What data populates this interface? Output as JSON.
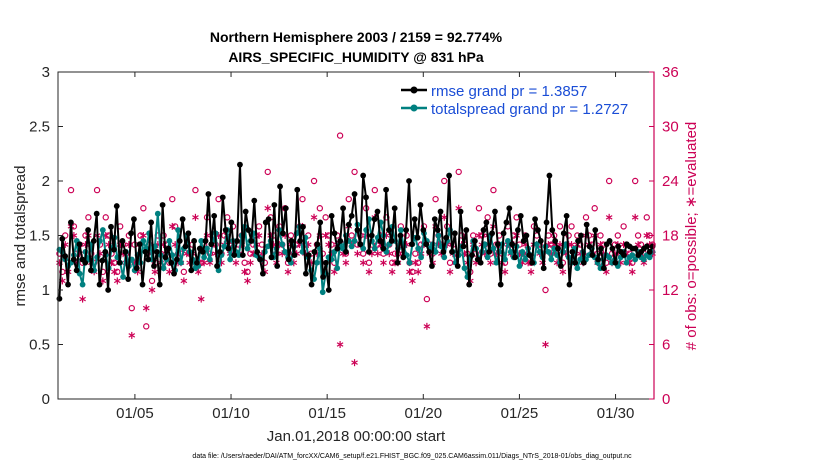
{
  "chart_data": {
    "type": "line",
    "title": "Northern Hemisphere 2003 / 2159 = 92.774%",
    "subtitle": "AIRS_SPECIFIC_HUMIDITY @ 831 hPa",
    "xlabel": "Jan.01,2018 00:00:00 start",
    "ylabel": "rmse and totalspread",
    "y2label": "# of obs: o=possible; ∗=evaluated",
    "footer": "data file: /Users/raeder/DAI/ATM_forcXX/CAM6_setup/f.e21.FHIST_BGC.f09_025.CAM6assim.011/Diags_NTrS_2018-01/obs_diag_output.nc",
    "xlim": [
      1.0,
      32.0
    ],
    "ylim": [
      0,
      3
    ],
    "y2lim": [
      0,
      36
    ],
    "xticks": [
      {
        "label": "01/05",
        "value": 5
      },
      {
        "label": "01/10",
        "value": 10
      },
      {
        "label": "01/15",
        "value": 15
      },
      {
        "label": "01/20",
        "value": 20
      },
      {
        "label": "01/25",
        "value": 25
      },
      {
        "label": "01/30",
        "value": 30
      }
    ],
    "yticks": [
      {
        "label": "0",
        "value": 0
      },
      {
        "label": "0.5",
        "value": 0.5
      },
      {
        "label": "1",
        "value": 1
      },
      {
        "label": "1.5",
        "value": 1.5
      },
      {
        "label": "2",
        "value": 2
      },
      {
        "label": "2.5",
        "value": 2.5
      },
      {
        "label": "3",
        "value": 3
      }
    ],
    "y2ticks": [
      {
        "label": "0",
        "value": 0
      },
      {
        "label": "6",
        "value": 6
      },
      {
        "label": "12",
        "value": 12
      },
      {
        "label": "18",
        "value": 18
      },
      {
        "label": "24",
        "value": 24
      },
      {
        "label": "30",
        "value": 30
      },
      {
        "label": "36",
        "value": 36
      }
    ],
    "legend_position": "top-right",
    "colors": {
      "rmse": "#000000",
      "spread": "#008080",
      "obs": "#cc0055",
      "axis": "#262626"
    },
    "series": [
      {
        "name": "rmse grand pr = 1.3857",
        "key": "rmse",
        "axis": "left",
        "values": [
          0.92,
          1.47,
          1.31,
          1.05,
          1.62,
          1.28,
          1.18,
          1.42,
          1.28,
          1.25,
          1.55,
          1.18,
          1.45,
          1.7,
          1.05,
          1.27,
          1.35,
          1.0,
          1.58,
          1.37,
          1.77,
          1.25,
          1.45,
          1.35,
          1.1,
          1.52,
          1.65,
          1.2,
          1.42,
          1.05,
          1.35,
          1.28,
          1.62,
          1.22,
          1.35,
          1.05,
          1.78,
          1.3,
          1.38,
          1.25,
          1.15,
          1.28,
          1.45,
          1.65,
          1.4,
          1.52,
          1.18,
          1.45,
          1.25,
          1.38,
          1.35,
          1.45,
          1.88,
          1.42,
          1.68,
          1.22,
          1.35,
          1.85,
          1.55,
          1.38,
          1.62,
          1.32,
          1.45,
          2.15,
          1.32,
          1.72,
          1.55,
          1.45,
          1.82,
          1.35,
          1.28,
          1.15,
          1.62,
          1.65,
          1.3,
          1.78,
          1.22,
          1.95,
          1.52,
          1.75,
          1.28,
          1.45,
          1.32,
          1.92,
          1.45,
          1.58,
          1.15,
          1.32,
          1.05,
          1.35,
          1.42,
          1.62,
          1.12,
          1.25,
          1.0,
          1.68,
          1.52,
          1.38,
          1.45,
          1.75,
          1.35,
          1.6,
          1.68,
          1.88,
          1.55,
          1.42,
          2.05,
          1.85,
          1.35,
          1.5,
          1.65,
          1.72,
          1.45,
          1.38,
          1.92,
          1.55,
          1.45,
          1.75,
          1.25,
          1.5,
          1.3,
          1.55,
          2.0,
          1.42,
          1.65,
          1.48,
          1.78,
          1.55,
          1.42,
          1.35,
          1.22,
          1.65,
          1.55,
          1.72,
          1.35,
          1.48,
          2.05,
          1.35,
          1.52,
          1.22,
          1.72,
          1.4,
          1.55,
          1.05,
          1.32,
          1.45,
          1.28,
          1.25,
          1.55,
          1.62,
          1.35,
          1.52,
          1.72,
          1.42,
          1.05,
          1.52,
          1.62,
          1.75,
          1.42,
          1.3,
          1.55,
          1.68,
          1.45,
          1.5,
          1.32,
          1.25,
          1.65,
          1.55,
          1.45,
          1.2,
          1.62,
          2.05,
          1.55,
          1.45,
          1.38,
          1.22,
          1.52,
          1.68,
          1.05,
          1.35,
          1.25,
          1.45,
          1.5,
          1.25,
          1.6,
          1.4,
          1.32,
          1.55,
          1.28,
          1.38,
          1.2,
          1.42,
          1.45,
          1.38,
          1.25,
          1.4,
          1.35,
          1.32,
          1.42,
          1.4,
          1.38,
          1.38,
          1.32,
          1.35,
          1.38,
          1.4,
          1.35,
          1.4
        ]
      },
      {
        "name": "totalspread grand pr = 1.2727",
        "key": "spread",
        "axis": "left",
        "values": [
          1.37,
          1.35,
          1.28,
          1.22,
          1.25,
          1.32,
          1.45,
          1.15,
          1.05,
          1.35,
          1.28,
          1.42,
          1.18,
          1.3,
          1.45,
          1.55,
          1.32,
          1.2,
          1.38,
          1.48,
          1.3,
          1.25,
          1.12,
          1.35,
          1.22,
          1.28,
          1.18,
          1.32,
          1.25,
          1.45,
          1.38,
          1.52,
          1.28,
          1.4,
          1.7,
          1.32,
          1.2,
          1.28,
          1.45,
          1.32,
          1.18,
          1.55,
          1.25,
          1.38,
          1.5,
          1.35,
          1.28,
          1.2,
          1.22,
          1.45,
          1.3,
          1.38,
          1.28,
          1.45,
          1.52,
          1.18,
          1.32,
          1.4,
          1.55,
          1.28,
          1.45,
          1.35,
          1.32,
          1.5,
          1.58,
          1.38,
          1.45,
          1.52,
          1.32,
          1.3,
          1.28,
          1.35,
          1.4,
          1.45,
          1.3,
          1.38,
          1.55,
          1.42,
          1.35,
          1.3,
          1.25,
          1.4,
          1.52,
          1.58,
          1.35,
          1.48,
          1.3,
          1.18,
          1.1,
          1.25,
          1.38,
          0.98,
          1.15,
          1.3,
          1.28,
          1.35,
          1.2,
          1.42,
          1.38,
          1.5,
          1.45,
          1.4,
          1.45,
          1.6,
          1.42,
          1.38,
          1.55,
          1.65,
          1.45,
          1.38,
          1.48,
          1.62,
          1.5,
          1.35,
          1.42,
          1.58,
          1.45,
          1.38,
          1.55,
          1.4,
          1.32,
          1.25,
          1.42,
          1.48,
          1.38,
          1.3,
          1.52,
          1.45,
          1.38,
          1.42,
          1.35,
          1.5,
          1.4,
          1.3,
          1.45,
          1.55,
          1.35,
          1.25,
          1.32,
          1.4,
          1.2,
          1.12,
          1.3,
          1.45,
          1.38,
          1.28,
          1.35,
          1.42,
          1.3,
          1.5,
          1.38,
          1.25,
          1.35,
          1.42,
          1.28,
          1.45,
          1.35,
          1.3,
          1.4,
          1.22,
          1.35,
          1.28,
          1.38,
          1.32,
          1.25,
          1.42,
          1.35,
          1.3,
          1.4,
          1.35,
          1.28,
          1.38,
          1.32,
          1.25,
          1.35,
          1.42,
          1.3,
          1.25,
          1.38,
          1.2,
          1.28,
          1.35,
          1.28,
          1.32,
          1.38,
          1.3,
          1.25,
          1.2,
          1.28,
          1.32,
          1.3,
          1.25,
          1.28,
          1.22,
          1.3,
          1.35,
          1.25,
          1.3,
          1.32,
          1.28,
          1.35,
          1.3,
          1.28,
          1.32,
          1.3,
          1.35
        ]
      },
      {
        "name": "obs possible",
        "key": "possible",
        "axis": "right",
        "marker": "o",
        "values": [
          16,
          14,
          18,
          15,
          23,
          19,
          16,
          17,
          15,
          18,
          20,
          16,
          15,
          23,
          17,
          14,
          20,
          18,
          16,
          15,
          14,
          19,
          17,
          16,
          18,
          10,
          17,
          15,
          18,
          21,
          8,
          17,
          13,
          15,
          18,
          16,
          18,
          17,
          15,
          22,
          19,
          16,
          16,
          14,
          17,
          16,
          17,
          23,
          15,
          15,
          17,
          20,
          16,
          18,
          17,
          22,
          16,
          18,
          20,
          17,
          19,
          16,
          17,
          18,
          15,
          14,
          16,
          17,
          18,
          19,
          17,
          15,
          25,
          20,
          18,
          16,
          19,
          17,
          21,
          15,
          18,
          16,
          17,
          19,
          22,
          17,
          18,
          16,
          24,
          17,
          21,
          16,
          20,
          18,
          17,
          15,
          18,
          29,
          17,
          16,
          22,
          18,
          25,
          17,
          18,
          16,
          21,
          15,
          17,
          23,
          17,
          18,
          16,
          20,
          17,
          15,
          16,
          16,
          19,
          17,
          18,
          15,
          14,
          16,
          15,
          17,
          19,
          11,
          17,
          16,
          22,
          18,
          17,
          24,
          19,
          15,
          17,
          16,
          25,
          18,
          17,
          16,
          14,
          18,
          16,
          21,
          18,
          17,
          20,
          16,
          23,
          17,
          18,
          16,
          15,
          19,
          17,
          18,
          20,
          17,
          16,
          18,
          16,
          15,
          19,
          18,
          17,
          16,
          12,
          18,
          17,
          18,
          16,
          19,
          15,
          17,
          18,
          19,
          16,
          18,
          17,
          16,
          20,
          18,
          17,
          21,
          16,
          18,
          17,
          15,
          24,
          16,
          17,
          18,
          16,
          19,
          17,
          16,
          15,
          24,
          18,
          17,
          16,
          20,
          18,
          17
        ]
      },
      {
        "name": "obs evaluated",
        "key": "evaluated",
        "axis": "right",
        "marker": "*",
        "values": [
          15,
          13,
          17,
          14,
          19,
          18,
          15,
          16,
          11,
          17,
          18,
          15,
          14,
          18,
          16,
          13,
          18,
          17,
          15,
          14,
          13,
          17,
          16,
          15,
          17,
          7,
          15,
          14,
          17,
          18,
          10,
          16,
          12,
          14,
          17,
          15,
          17,
          16,
          14,
          19,
          17,
          15,
          15,
          13,
          16,
          15,
          16,
          20,
          14,
          11,
          15,
          18,
          15,
          17,
          16,
          18,
          15,
          17,
          18,
          16,
          17,
          15,
          16,
          17,
          14,
          13,
          15,
          16,
          17,
          18,
          16,
          14,
          21,
          18,
          17,
          15,
          17,
          16,
          18,
          14,
          17,
          15,
          16,
          17,
          19,
          16,
          17,
          15,
          20,
          16,
          18,
          15,
          18,
          17,
          16,
          14,
          17,
          6,
          16,
          15,
          19,
          17,
          4,
          16,
          17,
          15,
          18,
          14,
          16,
          20,
          16,
          17,
          15,
          18,
          16,
          14,
          15,
          15,
          17,
          16,
          17,
          14,
          13,
          15,
          14,
          16,
          17,
          8,
          16,
          15,
          19,
          17,
          16,
          20,
          17,
          14,
          16,
          15,
          21,
          17,
          16,
          15,
          13,
          17,
          15,
          18,
          17,
          16,
          18,
          15,
          19,
          16,
          17,
          15,
          14,
          17,
          16,
          17,
          18,
          16,
          15,
          17,
          15,
          14,
          17,
          17,
          16,
          15,
          6,
          17,
          16,
          17,
          15,
          17,
          14,
          16,
          17,
          17,
          15,
          17,
          16,
          15,
          18,
          17,
          16,
          18,
          15,
          17,
          16,
          14,
          20,
          15,
          16,
          17,
          15,
          17,
          16,
          15,
          14,
          20,
          17,
          16,
          15,
          18,
          17,
          16
        ]
      }
    ]
  }
}
